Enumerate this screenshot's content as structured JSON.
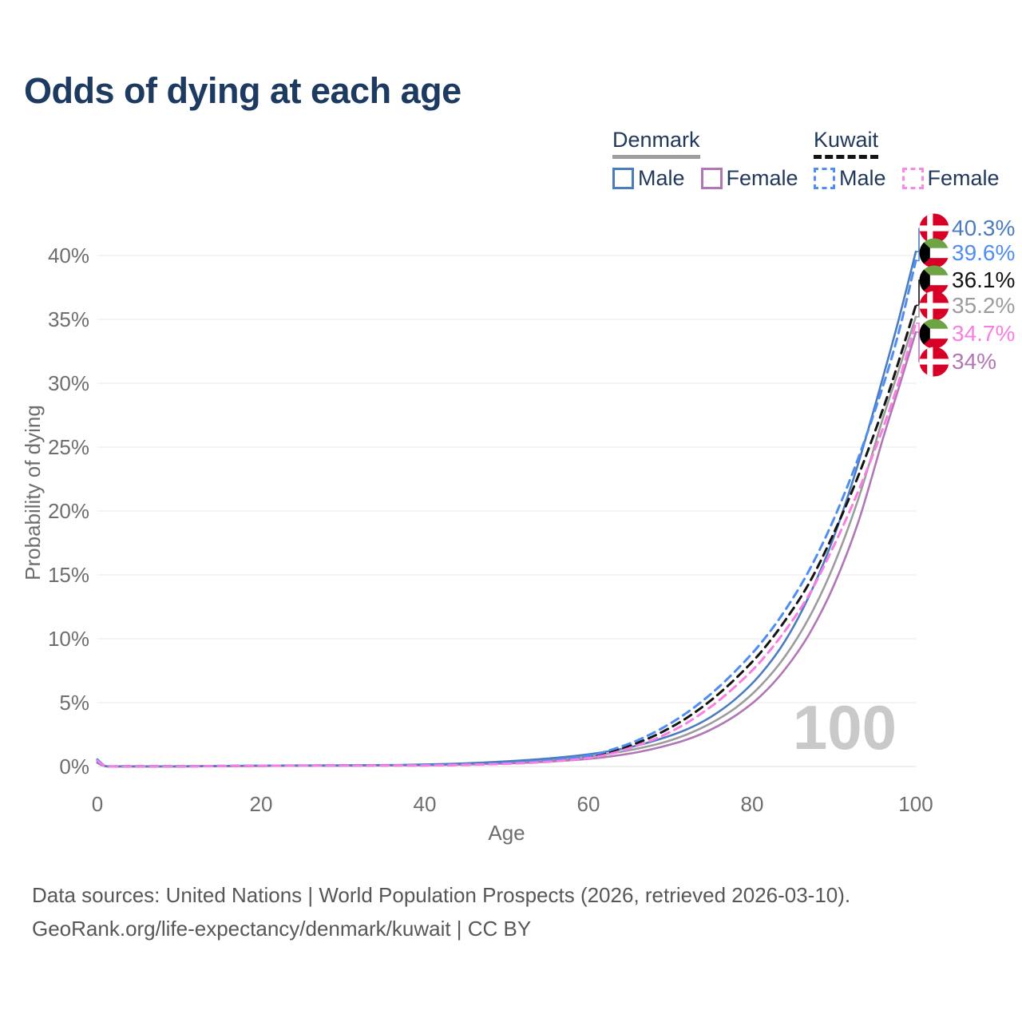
{
  "title": "Odds of dying at each age",
  "legend": {
    "denmark": {
      "name": "Denmark",
      "male_label": "Male",
      "female_label": "Female",
      "male_color": "#4a7cbf",
      "female_color": "#b176b6",
      "underline_color": "#9e9e9e",
      "line_style": "solid"
    },
    "kuwait": {
      "name": "Kuwait",
      "male_label": "Male",
      "female_label": "Female",
      "male_color": "#4f8df2",
      "female_color": "#f98ae3",
      "underline_color": "#141414",
      "line_style": "dashed"
    }
  },
  "footer": {
    "line1": "Data sources: United Nations | World Population Prospects (2026, retrieved 2026-03-10).",
    "line2": "GeoRank.org/life-expectancy/denmark/kuwait | CC BY"
  },
  "chart_data": {
    "type": "line",
    "title": "Odds of dying at each age",
    "xlabel": "Age",
    "ylabel": "Probability of dying",
    "xlim": [
      0,
      100
    ],
    "ylim": [
      0,
      42
    ],
    "x_ticks": [
      0,
      20,
      40,
      60,
      80,
      100
    ],
    "y_ticks": [
      0,
      5,
      10,
      15,
      20,
      25,
      30,
      35,
      40
    ],
    "y_tick_suffix": "%",
    "grid": "horizontal",
    "legend_position": "top-right",
    "watermark": "100",
    "watermark_color": "#c9c9c9",
    "axis_text_color": "#6e6e6e",
    "grid_color": "#e9e9e9",
    "flag_colors": {
      "denmark_red": "#D80027",
      "kuwait_green": "#6DA544",
      "kuwait_red": "#D80027",
      "kuwait_black": "#000000"
    },
    "draw_order": [
      "denmark_both",
      "denmark_female",
      "denmark_male",
      "kuwait_both",
      "kuwait_male",
      "kuwait_female"
    ],
    "series": [
      {
        "key": "denmark_male",
        "name": "Denmark Male",
        "color": "#4a7cbf",
        "dashed": false,
        "flag": "denmark",
        "end_label": "40.3%",
        "end_value": 40.3,
        "points": [
          [
            0,
            0.35
          ],
          [
            1,
            0.03
          ],
          [
            3,
            0.015
          ],
          [
            5,
            0.012
          ],
          [
            10,
            0.012
          ],
          [
            15,
            0.035
          ],
          [
            20,
            0.07
          ],
          [
            25,
            0.08
          ],
          [
            30,
            0.09
          ],
          [
            35,
            0.11
          ],
          [
            40,
            0.16
          ],
          [
            45,
            0.25
          ],
          [
            50,
            0.4
          ],
          [
            55,
            0.62
          ],
          [
            60,
            0.95
          ],
          [
            63,
            1.25
          ],
          [
            66,
            1.65
          ],
          [
            69,
            2.2
          ],
          [
            72,
            2.9
          ],
          [
            75,
            3.9
          ],
          [
            78,
            5.3
          ],
          [
            81,
            7.2
          ],
          [
            84,
            9.8
          ],
          [
            87,
            13.4
          ],
          [
            90,
            18
          ],
          [
            93,
            23.8
          ],
          [
            96,
            30.5
          ],
          [
            98,
            35.2
          ],
          [
            100,
            40.3
          ]
        ]
      },
      {
        "key": "kuwait_male",
        "name": "Kuwait Male",
        "color": "#4f8df2",
        "dashed": true,
        "flag": "kuwait",
        "end_label": "39.6%",
        "end_value": 39.6,
        "points": [
          [
            0,
            0.55
          ],
          [
            1,
            0.05
          ],
          [
            3,
            0.025
          ],
          [
            5,
            0.02
          ],
          [
            10,
            0.02
          ],
          [
            15,
            0.04
          ],
          [
            20,
            0.06
          ],
          [
            25,
            0.07
          ],
          [
            30,
            0.08
          ],
          [
            35,
            0.09
          ],
          [
            40,
            0.1
          ],
          [
            45,
            0.16
          ],
          [
            50,
            0.27
          ],
          [
            55,
            0.48
          ],
          [
            60,
            0.85
          ],
          [
            63,
            1.35
          ],
          [
            66,
            2.05
          ],
          [
            69,
            3
          ],
          [
            72,
            4.2
          ],
          [
            75,
            5.7
          ],
          [
            78,
            7.5
          ],
          [
            81,
            9.6
          ],
          [
            84,
            12.2
          ],
          [
            87,
            15.4
          ],
          [
            90,
            19.4
          ],
          [
            93,
            24.2
          ],
          [
            96,
            29.8
          ],
          [
            98,
            34.2
          ],
          [
            100,
            39.6
          ]
        ]
      },
      {
        "key": "kuwait_both",
        "name": "Kuwait",
        "color": "#141414",
        "dashed": true,
        "flag": "kuwait",
        "end_label": "36.1%",
        "end_value": 36.1,
        "points": [
          [
            0,
            0.5
          ],
          [
            1,
            0.045
          ],
          [
            3,
            0.02
          ],
          [
            5,
            0.018
          ],
          [
            10,
            0.018
          ],
          [
            15,
            0.035
          ],
          [
            20,
            0.055
          ],
          [
            25,
            0.065
          ],
          [
            30,
            0.075
          ],
          [
            35,
            0.085
          ],
          [
            40,
            0.09
          ],
          [
            45,
            0.14
          ],
          [
            50,
            0.24
          ],
          [
            55,
            0.42
          ],
          [
            60,
            0.75
          ],
          [
            63,
            1.2
          ],
          [
            66,
            1.85
          ],
          [
            69,
            2.7
          ],
          [
            72,
            3.8
          ],
          [
            75,
            5.2
          ],
          [
            78,
            6.9
          ],
          [
            81,
            8.9
          ],
          [
            84,
            11.4
          ],
          [
            87,
            14.4
          ],
          [
            90,
            18.3
          ],
          [
            93,
            22.8
          ],
          [
            96,
            28
          ],
          [
            98,
            31.9
          ],
          [
            100,
            36.1
          ]
        ]
      },
      {
        "key": "denmark_both",
        "name": "Denmark",
        "color": "#9c9c9c",
        "dashed": false,
        "flag": "denmark",
        "end_label": "35.2%",
        "end_value": 35.2,
        "points": [
          [
            0,
            0.3
          ],
          [
            1,
            0.025
          ],
          [
            3,
            0.012
          ],
          [
            5,
            0.01
          ],
          [
            10,
            0.01
          ],
          [
            15,
            0.03
          ],
          [
            20,
            0.055
          ],
          [
            25,
            0.065
          ],
          [
            30,
            0.075
          ],
          [
            35,
            0.095
          ],
          [
            40,
            0.13
          ],
          [
            45,
            0.2
          ],
          [
            50,
            0.32
          ],
          [
            55,
            0.5
          ],
          [
            60,
            0.78
          ],
          [
            63,
            1.05
          ],
          [
            66,
            1.4
          ],
          [
            69,
            1.85
          ],
          [
            72,
            2.5
          ],
          [
            75,
            3.4
          ],
          [
            78,
            4.6
          ],
          [
            81,
            6.3
          ],
          [
            84,
            8.6
          ],
          [
            87,
            11.7
          ],
          [
            90,
            15.8
          ],
          [
            93,
            21
          ],
          [
            96,
            27.3
          ],
          [
            98,
            31.2
          ],
          [
            100,
            35.2
          ]
        ]
      },
      {
        "key": "kuwait_female",
        "name": "Kuwait Female",
        "color": "#f97ee3",
        "dashed": true,
        "flag": "kuwait",
        "end_label": "34.7%",
        "end_value": 34.7,
        "points": [
          [
            0,
            0.45
          ],
          [
            1,
            0.04
          ],
          [
            3,
            0.018
          ],
          [
            5,
            0.015
          ],
          [
            10,
            0.015
          ],
          [
            15,
            0.03
          ],
          [
            20,
            0.05
          ],
          [
            25,
            0.06
          ],
          [
            30,
            0.07
          ],
          [
            35,
            0.078
          ],
          [
            40,
            0.08
          ],
          [
            45,
            0.13
          ],
          [
            50,
            0.21
          ],
          [
            55,
            0.37
          ],
          [
            60,
            0.66
          ],
          [
            63,
            1.05
          ],
          [
            66,
            1.65
          ],
          [
            69,
            2.4
          ],
          [
            72,
            3.4
          ],
          [
            75,
            4.7
          ],
          [
            78,
            6.3
          ],
          [
            81,
            8.2
          ],
          [
            84,
            10.6
          ],
          [
            87,
            13.5
          ],
          [
            90,
            17.3
          ],
          [
            93,
            21.6
          ],
          [
            96,
            26.5
          ],
          [
            98,
            30.3
          ],
          [
            100,
            34.7
          ]
        ]
      },
      {
        "key": "denmark_female",
        "name": "Denmark Female",
        "color": "#b176b6",
        "dashed": false,
        "flag": "denmark",
        "end_label": "34%",
        "end_value": 34,
        "points": [
          [
            0,
            0.28
          ],
          [
            1,
            0.02
          ],
          [
            3,
            0.01
          ],
          [
            5,
            0.008
          ],
          [
            10,
            0.008
          ],
          [
            15,
            0.025
          ],
          [
            20,
            0.045
          ],
          [
            25,
            0.055
          ],
          [
            30,
            0.065
          ],
          [
            35,
            0.08
          ],
          [
            40,
            0.1
          ],
          [
            45,
            0.15
          ],
          [
            50,
            0.24
          ],
          [
            55,
            0.38
          ],
          [
            60,
            0.6
          ],
          [
            63,
            0.82
          ],
          [
            66,
            1.12
          ],
          [
            69,
            1.55
          ],
          [
            72,
            2.1
          ],
          [
            75,
            2.9
          ],
          [
            78,
            4
          ],
          [
            81,
            5.5
          ],
          [
            84,
            7.6
          ],
          [
            87,
            10.4
          ],
          [
            90,
            14.2
          ],
          [
            93,
            19.2
          ],
          [
            96,
            25.7
          ],
          [
            98,
            29.8
          ],
          [
            100,
            34
          ]
        ]
      }
    ]
  }
}
